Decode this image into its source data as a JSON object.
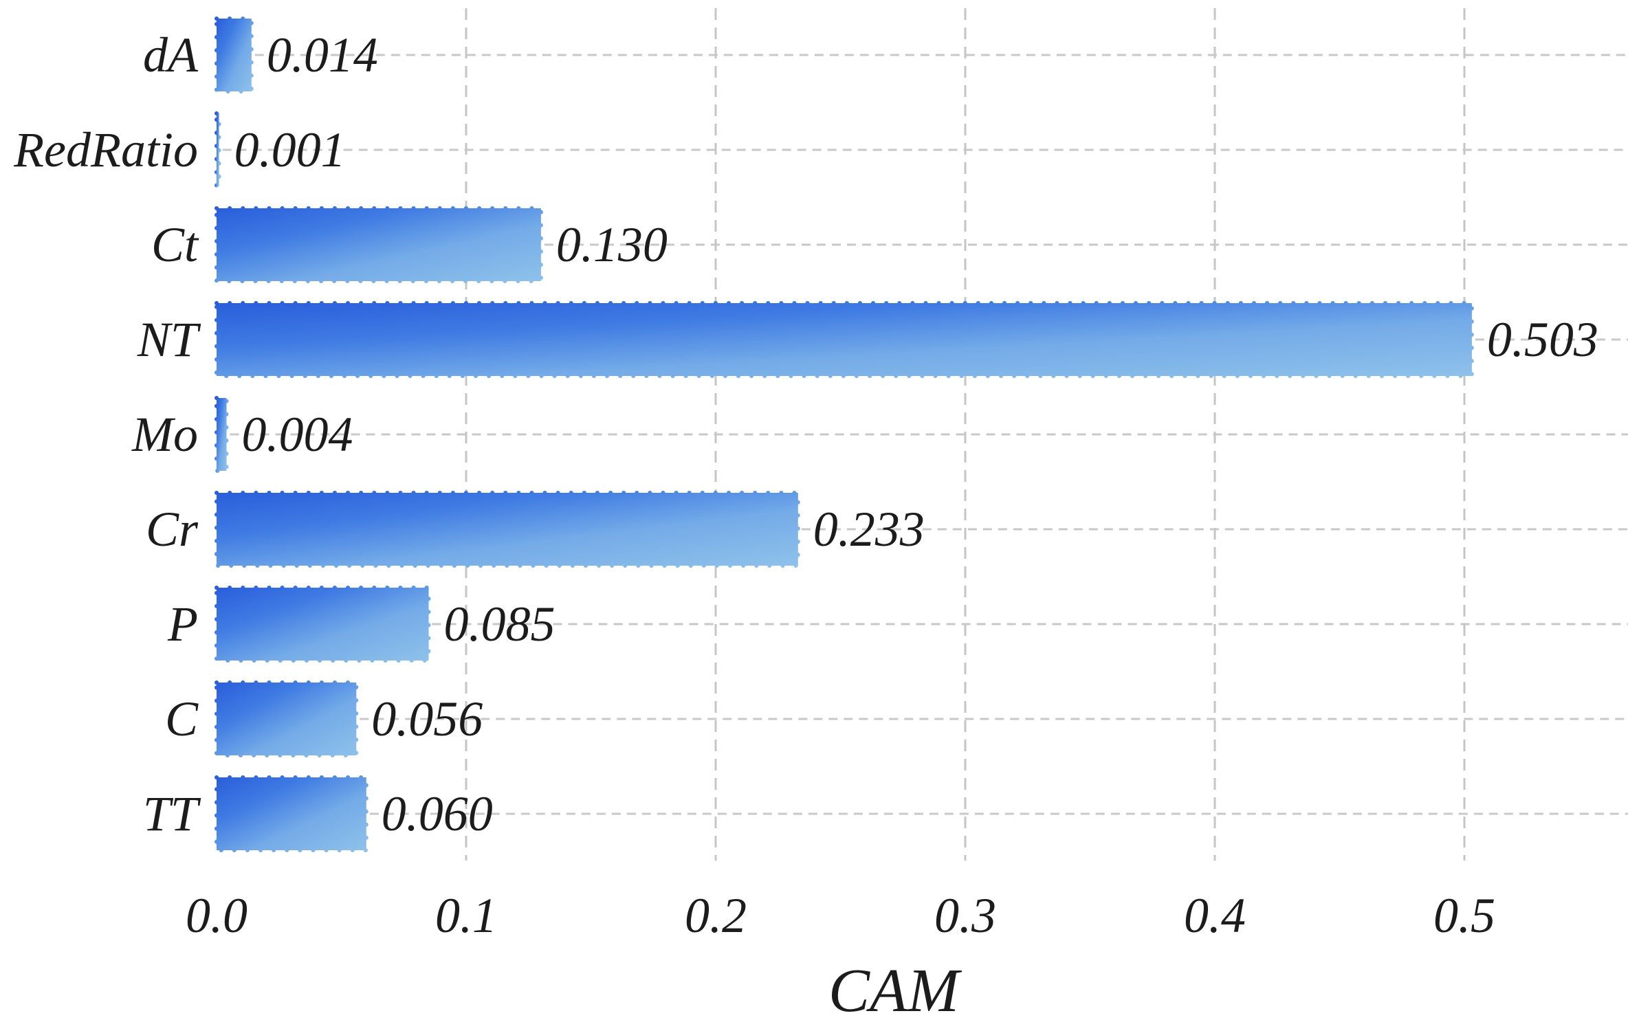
{
  "chart_data": {
    "type": "bar",
    "orientation": "horizontal",
    "title": "",
    "xlabel": "CAM",
    "ylabel": "",
    "categories": [
      "dA",
      "RedRatio",
      "Ct",
      "NT",
      "Mo",
      "Cr",
      "P",
      "C",
      "TT"
    ],
    "values": [
      0.014,
      0.001,
      0.13,
      0.503,
      0.004,
      0.233,
      0.085,
      0.056,
      0.06
    ],
    "value_labels": [
      "0.014",
      "0.001",
      "0.130",
      "0.503",
      "0.004",
      "0.233",
      "0.085",
      "0.056",
      "0.060"
    ],
    "x_ticks": [
      0.0,
      0.1,
      0.2,
      0.3,
      0.4,
      0.5
    ],
    "x_tick_labels": [
      "0.0",
      "0.1",
      "0.2",
      "0.3",
      "0.4",
      "0.5"
    ],
    "xlim": [
      0,
      0.565
    ],
    "grid": true,
    "gridline_style": "dashed",
    "legend": false,
    "colors": {
      "bar_gradient_start": "#2a5edb",
      "bar_gradient_mid": "#5b93e5",
      "bar_gradient_end": "#8ec1ea",
      "gridline": "#c5c5c5",
      "row_line": "#c8c8c8",
      "text": "#1c1c1c",
      "background": "#ffffff"
    }
  }
}
